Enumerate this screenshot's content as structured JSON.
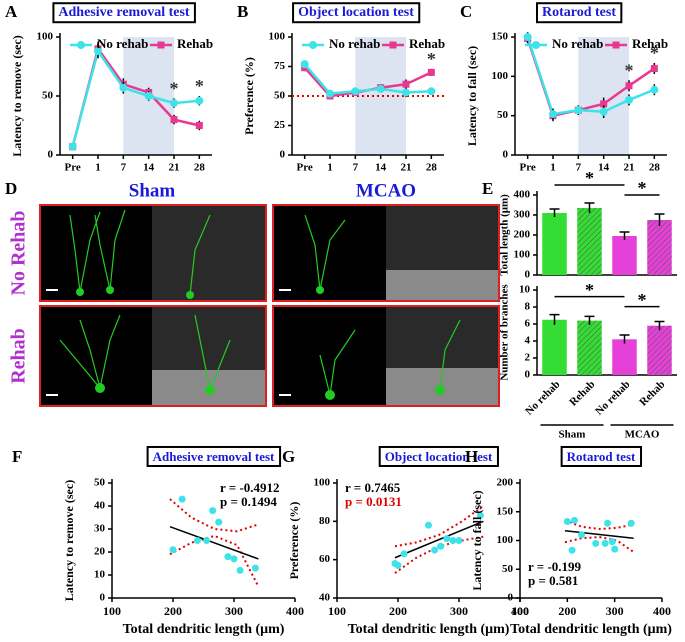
{
  "panel_d": {
    "label": "D",
    "columns": [
      "Sham",
      "MCAO"
    ],
    "rows": [
      "No Rehab",
      "Rehab"
    ]
  },
  "chart_data": [
    {
      "type": "line",
      "label": "A",
      "title": "Adhesive removal test",
      "y_label": "Latency to remove (sec)",
      "categories": [
        "Pre",
        "1",
        "7",
        "14",
        "21",
        "28"
      ],
      "series": [
        {
          "name": "No rehab",
          "color": "#3de3e8",
          "marker": "circle",
          "values": [
            7,
            88,
            57,
            50,
            44,
            46
          ],
          "errors": [
            1,
            6,
            5,
            4,
            4,
            4
          ]
        },
        {
          "name": "Rehab",
          "color": "#e8388f",
          "marker": "square",
          "values": [
            7,
            90,
            60,
            53,
            30,
            25
          ],
          "errors": [
            1,
            6,
            5,
            4,
            4,
            4
          ]
        }
      ],
      "ylim": [
        0,
        100
      ],
      "yticks": [
        0,
        50,
        100
      ],
      "shade": {
        "from": "7",
        "to": "21",
        "color": "#dbe4f0"
      },
      "stars": [
        {
          "category": "21",
          "text": "*"
        },
        {
          "category": "28",
          "text": "*"
        }
      ]
    },
    {
      "type": "line",
      "label": "B",
      "title": "Object location test",
      "y_label": "Preference (%)",
      "categories": [
        "Pre",
        "1",
        "7",
        "14",
        "21",
        "28"
      ],
      "series": [
        {
          "name": "No rehab",
          "color": "#3de3e8",
          "marker": "circle",
          "values": [
            77,
            52,
            54,
            56,
            53,
            54
          ],
          "errors": [
            3,
            3,
            2,
            3,
            4,
            3
          ]
        },
        {
          "name": "Rehab",
          "color": "#e8388f",
          "marker": "square",
          "values": [
            74,
            50,
            53,
            57,
            60,
            70
          ],
          "errors": [
            3,
            3,
            2,
            3,
            4,
            3
          ]
        }
      ],
      "ylim": [
        0,
        100
      ],
      "yticks": [
        0,
        25,
        50,
        75,
        100
      ],
      "shade": {
        "from": "7",
        "to": "21",
        "color": "#dbe4f0"
      },
      "reference_line": {
        "value": 50,
        "color": "#e00000"
      },
      "stars": [
        {
          "category": "28",
          "text": "*"
        }
      ]
    },
    {
      "type": "line",
      "label": "C",
      "title": "Rotarod test",
      "y_label": "Latency to fall (sec)",
      "categories": [
        "Pre",
        "1",
        "7",
        "14",
        "21",
        "28"
      ],
      "series": [
        {
          "name": "No rehab",
          "color": "#3de3e8",
          "marker": "circle",
          "values": [
            150,
            52,
            57,
            55,
            70,
            83
          ],
          "errors": [
            6,
            7,
            6,
            8,
            7,
            7
          ]
        },
        {
          "name": "Rehab",
          "color": "#e8388f",
          "marker": "square",
          "values": [
            148,
            50,
            57,
            65,
            88,
            110
          ],
          "errors": [
            6,
            7,
            6,
            8,
            7,
            7
          ]
        }
      ],
      "ylim": [
        0,
        150
      ],
      "yticks": [
        0,
        50,
        100,
        150
      ],
      "shade": {
        "from": "7",
        "to": "21",
        "color": "#dbe4f0"
      },
      "stars": [
        {
          "category": "21",
          "text": "*"
        },
        {
          "category": "28",
          "text": "*"
        }
      ]
    },
    {
      "type": "bar",
      "label": "E",
      "y_label": "Total length (μm)",
      "values": [
        310,
        335,
        195,
        275
      ],
      "errors": [
        20,
        25,
        20,
        30
      ],
      "colors": [
        "#33dd33",
        "#33dd33",
        "#e540d8",
        "#e540d8"
      ],
      "hatched": [
        false,
        true,
        false,
        true
      ],
      "ylim": [
        0,
        400
      ],
      "yticks": [
        0,
        100,
        200,
        300,
        400
      ],
      "significance": [
        {
          "from": 0,
          "to": 2,
          "text": "*"
        },
        {
          "from": 2,
          "to": 3,
          "text": "*"
        }
      ]
    },
    {
      "type": "bar",
      "y_label": "Number of branches",
      "categories": [
        "No rehab",
        "Rehab",
        "No rehab",
        "Rehab"
      ],
      "values": [
        6.5,
        6.4,
        4.2,
        5.8
      ],
      "errors": [
        0.6,
        0.5,
        0.5,
        0.5
      ],
      "colors": [
        "#33dd33",
        "#33dd33",
        "#e540d8",
        "#e540d8"
      ],
      "hatched": [
        false,
        true,
        false,
        true
      ],
      "ylim": [
        0,
        10
      ],
      "yticks": [
        0,
        2,
        4,
        6,
        8,
        10
      ],
      "groups": [
        {
          "name": "Sham",
          "from": 0,
          "to": 1
        },
        {
          "name": "MCAO",
          "from": 2,
          "to": 3
        }
      ],
      "significance": [
        {
          "from": 0,
          "to": 2,
          "text": "*"
        },
        {
          "from": 2,
          "to": 3,
          "text": "*"
        }
      ]
    },
    {
      "type": "scatter",
      "label": "F",
      "title": "Adhesive removal test",
      "x_label": "Total dendritic length (μm)",
      "y_label": "Latency to remove (sec)",
      "x": [
        200,
        215,
        240,
        255,
        265,
        275,
        290,
        300,
        310,
        335
      ],
      "y": [
        21,
        43,
        25,
        25,
        38,
        33,
        18,
        17,
        12,
        13
      ],
      "color": "#3de3e8",
      "xlim": [
        100,
        400
      ],
      "xticks": [
        100,
        200,
        300,
        400
      ],
      "ylim": [
        0,
        50
      ],
      "yticks": [
        0,
        10,
        20,
        30,
        40,
        50
      ],
      "fit": {
        "x": [
          195,
          340
        ],
        "y": [
          31,
          17
        ]
      },
      "ci": {
        "x": [
          195,
          230,
          268,
          305,
          340
        ],
        "upper": [
          43,
          35,
          30,
          29,
          32
        ],
        "lower": [
          19,
          24,
          27,
          23,
          5
        ],
        "color": "#e00000"
      },
      "stats_corner": "top-right",
      "stats": [
        {
          "text": "r = -0.4912",
          "color": "#000000"
        },
        {
          "text": "p = 0.1494",
          "color": "#000000"
        }
      ]
    },
    {
      "type": "scatter",
      "label": "G",
      "title": "Object location test",
      "x_label": "Total dendritic length (μm)",
      "y_label": "Preference (%)",
      "x": [
        195,
        200,
        210,
        250,
        260,
        270,
        280,
        290,
        300,
        335
      ],
      "y": [
        58,
        57,
        63,
        78,
        65,
        67,
        71,
        70,
        70,
        83
      ],
      "color": "#3de3e8",
      "xlim": [
        100,
        400
      ],
      "xticks": [
        100,
        200,
        300,
        400
      ],
      "ylim": [
        40,
        100
      ],
      "yticks": [
        40,
        60,
        80,
        100
      ],
      "fit": {
        "x": [
          195,
          340
        ],
        "y": [
          61,
          80
        ]
      },
      "ci": {
        "x": [
          195,
          230,
          268,
          305,
          340
        ],
        "upper": [
          67,
          69,
          73,
          80,
          88
        ],
        "lower": [
          53,
          61,
          67,
          70,
          72
        ],
        "color": "#e00000"
      },
      "stats_corner": "top-left",
      "stats": [
        {
          "text": "r = 0.7465",
          "color": "#000000"
        },
        {
          "text": "p = 0.0131",
          "color": "#e00000"
        }
      ]
    },
    {
      "type": "scatter",
      "label": "H",
      "title": "Rotarod test",
      "x_label": "Total dendritic length (μm)",
      "y_label": "Latency to fall (sec)",
      "x": [
        200,
        210,
        215,
        230,
        260,
        280,
        285,
        295,
        300,
        335
      ],
      "y": [
        133,
        83,
        135,
        110,
        95,
        95,
        130,
        98,
        85,
        130
      ],
      "color": "#3de3e8",
      "xlim": [
        100,
        400
      ],
      "xticks": [
        100,
        200,
        300,
        400
      ],
      "ylim": [
        0,
        200
      ],
      "yticks": [
        0,
        50,
        100,
        150,
        200
      ],
      "fit": {
        "x": [
          195,
          340
        ],
        "y": [
          117,
          104
        ]
      },
      "ci": {
        "x": [
          195,
          230,
          268,
          305,
          340
        ],
        "upper": [
          135,
          124,
          120,
          122,
          128
        ],
        "lower": [
          97,
          104,
          106,
          100,
          80
        ],
        "color": "#e00000"
      },
      "stats_corner": "bottom-left",
      "stats": [
        {
          "text": "r = -0.199",
          "color": "#000000"
        },
        {
          "text": "p = 0.581",
          "color": "#000000"
        }
      ]
    }
  ]
}
